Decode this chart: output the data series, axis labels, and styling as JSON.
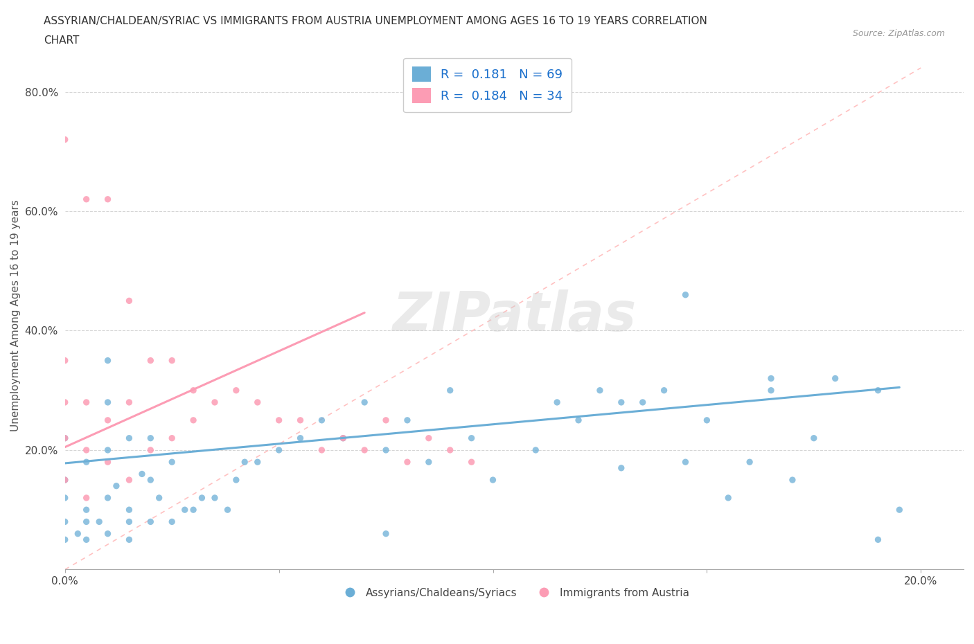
{
  "title_line1": "ASSYRIAN/CHALDEAN/SYRIAC VS IMMIGRANTS FROM AUSTRIA UNEMPLOYMENT AMONG AGES 16 TO 19 YEARS CORRELATION",
  "title_line2": "CHART",
  "source": "Source: ZipAtlas.com",
  "ylabel": "Unemployment Among Ages 16 to 19 years",
  "xlim": [
    0.0,
    0.21
  ],
  "ylim": [
    0.0,
    0.85
  ],
  "xticks": [
    0.0,
    0.05,
    0.1,
    0.15,
    0.2
  ],
  "yticks": [
    0.0,
    0.2,
    0.4,
    0.6,
    0.8
  ],
  "xticklabels": [
    "0.0%",
    "",
    "",
    "",
    "20.0%"
  ],
  "yticklabels": [
    "",
    "20.0%",
    "40.0%",
    "60.0%",
    "80.0%"
  ],
  "blue_color": "#6baed6",
  "pink_color": "#fc9cb4",
  "R_blue": 0.181,
  "N_blue": 69,
  "R_pink": 0.184,
  "N_pink": 34,
  "legend_label_blue": "Assyrians/Chaldeans/Syriacs",
  "legend_label_pink": "Immigrants from Austria",
  "watermark": "ZIPatlas",
  "blue_scatter_x": [
    0.0,
    0.0,
    0.0,
    0.0,
    0.0,
    0.003,
    0.005,
    0.005,
    0.005,
    0.008,
    0.01,
    0.01,
    0.01,
    0.01,
    0.012,
    0.015,
    0.015,
    0.015,
    0.018,
    0.02,
    0.02,
    0.02,
    0.022,
    0.025,
    0.025,
    0.028,
    0.03,
    0.032,
    0.035,
    0.038,
    0.04,
    0.042,
    0.045,
    0.05,
    0.055,
    0.06,
    0.065,
    0.07,
    0.075,
    0.08,
    0.085,
    0.09,
    0.095,
    0.1,
    0.11,
    0.115,
    0.12,
    0.125,
    0.13,
    0.135,
    0.14,
    0.145,
    0.15,
    0.155,
    0.16,
    0.165,
    0.17,
    0.175,
    0.18,
    0.19,
    0.195,
    0.145,
    0.075,
    0.005,
    0.01,
    0.015,
    0.165,
    0.19,
    0.13
  ],
  "blue_scatter_y": [
    0.05,
    0.08,
    0.12,
    0.15,
    0.22,
    0.06,
    0.05,
    0.1,
    0.18,
    0.08,
    0.06,
    0.12,
    0.2,
    0.28,
    0.14,
    0.05,
    0.1,
    0.22,
    0.16,
    0.08,
    0.15,
    0.22,
    0.12,
    0.08,
    0.18,
    0.1,
    0.1,
    0.12,
    0.12,
    0.1,
    0.15,
    0.18,
    0.18,
    0.2,
    0.22,
    0.25,
    0.22,
    0.28,
    0.2,
    0.25,
    0.18,
    0.3,
    0.22,
    0.15,
    0.2,
    0.28,
    0.25,
    0.3,
    0.28,
    0.28,
    0.3,
    0.18,
    0.25,
    0.12,
    0.18,
    0.3,
    0.15,
    0.22,
    0.32,
    0.3,
    0.1,
    0.46,
    0.06,
    0.08,
    0.35,
    0.08,
    0.32,
    0.05,
    0.17
  ],
  "pink_scatter_x": [
    0.0,
    0.0,
    0.0,
    0.0,
    0.0,
    0.005,
    0.005,
    0.005,
    0.005,
    0.01,
    0.01,
    0.01,
    0.015,
    0.015,
    0.015,
    0.02,
    0.02,
    0.025,
    0.025,
    0.03,
    0.03,
    0.035,
    0.04,
    0.045,
    0.05,
    0.055,
    0.06,
    0.065,
    0.07,
    0.075,
    0.08,
    0.085,
    0.09,
    0.095
  ],
  "pink_scatter_y": [
    0.15,
    0.22,
    0.28,
    0.35,
    0.72,
    0.12,
    0.2,
    0.28,
    0.62,
    0.18,
    0.25,
    0.62,
    0.15,
    0.28,
    0.45,
    0.2,
    0.35,
    0.22,
    0.35,
    0.25,
    0.3,
    0.28,
    0.3,
    0.28,
    0.25,
    0.25,
    0.2,
    0.22,
    0.2,
    0.25,
    0.18,
    0.22,
    0.2,
    0.18
  ],
  "blue_trend_x": [
    0.0,
    0.195
  ],
  "blue_trend_y": [
    0.178,
    0.305
  ],
  "pink_trend_x": [
    0.0,
    0.07
  ],
  "pink_trend_y": [
    0.205,
    0.43
  ],
  "ref_line_x": [
    0.0,
    0.2
  ],
  "ref_line_y": [
    0.0,
    0.84
  ],
  "background_color": "#ffffff",
  "grid_color": "#cccccc"
}
